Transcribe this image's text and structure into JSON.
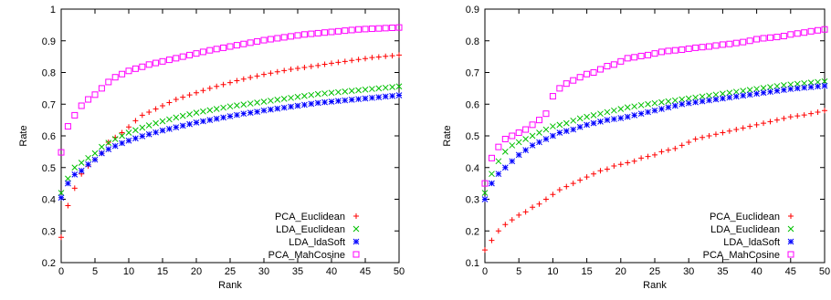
{
  "chart_data": [
    {
      "type": "scatter",
      "title": "",
      "xlabel": "Rank",
      "ylabel": "Rate",
      "xlim": [
        0,
        50
      ],
      "ylim": [
        0.2,
        1.0
      ],
      "xticks": [
        "0",
        "5",
        "10",
        "15",
        "20",
        "25",
        "30",
        "35",
        "40",
        "45",
        "50"
      ],
      "yticks": [
        "0.2",
        "0.3",
        "0.4",
        "0.5",
        "0.6",
        "0.7",
        "0.8",
        "0.9",
        "1"
      ],
      "grid": false,
      "legend_position": "bottom-right",
      "x": [
        0,
        1,
        2,
        3,
        4,
        5,
        6,
        7,
        8,
        9,
        10,
        11,
        12,
        13,
        14,
        15,
        16,
        17,
        18,
        19,
        20,
        21,
        22,
        23,
        24,
        25,
        26,
        27,
        28,
        29,
        30,
        31,
        32,
        33,
        34,
        35,
        36,
        37,
        38,
        39,
        40,
        41,
        42,
        43,
        44,
        45,
        46,
        47,
        48,
        49,
        50
      ],
      "series": [
        {
          "name": "PCA_Euclidean",
          "marker": "plus",
          "color": "#ff0000",
          "values": [
            0.28,
            0.38,
            0.435,
            0.48,
            0.505,
            0.525,
            0.545,
            0.58,
            0.595,
            0.61,
            0.628,
            0.648,
            0.665,
            0.675,
            0.685,
            0.695,
            0.705,
            0.715,
            0.722,
            0.729,
            0.736,
            0.743,
            0.75,
            0.756,
            0.762,
            0.768,
            0.774,
            0.779,
            0.784,
            0.789,
            0.794,
            0.798,
            0.802,
            0.806,
            0.81,
            0.813,
            0.816,
            0.819,
            0.822,
            0.826,
            0.829,
            0.832,
            0.835,
            0.838,
            0.841,
            0.844,
            0.847,
            0.849,
            0.851,
            0.853,
            0.855
          ]
        },
        {
          "name": "LDA_Euclidean",
          "marker": "cross",
          "color": "#00c000",
          "values": [
            0.42,
            0.465,
            0.5,
            0.515,
            0.53,
            0.545,
            0.565,
            0.578,
            0.59,
            0.6,
            0.61,
            0.618,
            0.626,
            0.633,
            0.64,
            0.646,
            0.652,
            0.658,
            0.663,
            0.668,
            0.673,
            0.677,
            0.681,
            0.685,
            0.689,
            0.693,
            0.696,
            0.699,
            0.702,
            0.705,
            0.708,
            0.711,
            0.714,
            0.717,
            0.72,
            0.723,
            0.726,
            0.729,
            0.732,
            0.734,
            0.736,
            0.738,
            0.74,
            0.742,
            0.744,
            0.746,
            0.748,
            0.75,
            0.752,
            0.754,
            0.756
          ]
        },
        {
          "name": "LDA_ldaSoft",
          "marker": "star",
          "color": "#0000ff",
          "values": [
            0.405,
            0.45,
            0.478,
            0.49,
            0.51,
            0.525,
            0.545,
            0.558,
            0.568,
            0.577,
            0.585,
            0.592,
            0.599,
            0.605,
            0.611,
            0.617,
            0.622,
            0.627,
            0.632,
            0.637,
            0.642,
            0.646,
            0.65,
            0.654,
            0.658,
            0.662,
            0.666,
            0.67,
            0.673,
            0.676,
            0.68,
            0.683,
            0.686,
            0.689,
            0.692,
            0.695,
            0.698,
            0.701,
            0.704,
            0.706,
            0.708,
            0.71,
            0.712,
            0.714,
            0.716,
            0.718,
            0.72,
            0.722,
            0.724,
            0.726,
            0.728
          ]
        },
        {
          "name": "PCA_MahCosine",
          "marker": "square",
          "color": "#ff00ff",
          "values": [
            0.548,
            0.63,
            0.665,
            0.695,
            0.715,
            0.73,
            0.75,
            0.77,
            0.785,
            0.795,
            0.805,
            0.812,
            0.818,
            0.825,
            0.83,
            0.835,
            0.84,
            0.845,
            0.85,
            0.855,
            0.86,
            0.865,
            0.87,
            0.874,
            0.878,
            0.882,
            0.886,
            0.89,
            0.894,
            0.898,
            0.902,
            0.905,
            0.908,
            0.911,
            0.914,
            0.917,
            0.92,
            0.922,
            0.924,
            0.926,
            0.928,
            0.93,
            0.932,
            0.934,
            0.936,
            0.937,
            0.938,
            0.939,
            0.94,
            0.941,
            0.942
          ]
        }
      ]
    },
    {
      "type": "scatter",
      "title": "",
      "xlabel": "Rank",
      "ylabel": "Rate",
      "xlim": [
        0,
        50
      ],
      "ylim": [
        0.1,
        0.9
      ],
      "xticks": [
        "0",
        "5",
        "10",
        "15",
        "20",
        "25",
        "30",
        "35",
        "40",
        "45",
        "50"
      ],
      "yticks": [
        "0.1",
        "0.2",
        "0.3",
        "0.4",
        "0.5",
        "0.6",
        "0.7",
        "0.8",
        "0.9"
      ],
      "grid": false,
      "legend_position": "bottom-right",
      "x": [
        0,
        1,
        2,
        3,
        4,
        5,
        6,
        7,
        8,
        9,
        10,
        11,
        12,
        13,
        14,
        15,
        16,
        17,
        18,
        19,
        20,
        21,
        22,
        23,
        24,
        25,
        26,
        27,
        28,
        29,
        30,
        31,
        32,
        33,
        34,
        35,
        36,
        37,
        38,
        39,
        40,
        41,
        42,
        43,
        44,
        45,
        46,
        47,
        48,
        49,
        50
      ],
      "series": [
        {
          "name": "PCA_Euclidean",
          "marker": "plus",
          "color": "#ff0000",
          "values": [
            0.14,
            0.17,
            0.2,
            0.22,
            0.235,
            0.25,
            0.26,
            0.275,
            0.285,
            0.3,
            0.315,
            0.33,
            0.34,
            0.35,
            0.36,
            0.37,
            0.38,
            0.39,
            0.395,
            0.405,
            0.41,
            0.415,
            0.42,
            0.43,
            0.435,
            0.44,
            0.45,
            0.455,
            0.46,
            0.47,
            0.48,
            0.49,
            0.495,
            0.5,
            0.505,
            0.51,
            0.515,
            0.52,
            0.525,
            0.53,
            0.535,
            0.54,
            0.545,
            0.55,
            0.555,
            0.56,
            0.563,
            0.566,
            0.57,
            0.575,
            0.58
          ]
        },
        {
          "name": "LDA_Euclidean",
          "marker": "cross",
          "color": "#00c000",
          "values": [
            0.32,
            0.38,
            0.42,
            0.45,
            0.47,
            0.48,
            0.49,
            0.5,
            0.51,
            0.52,
            0.53,
            0.535,
            0.54,
            0.548,
            0.555,
            0.56,
            0.565,
            0.57,
            0.575,
            0.58,
            0.585,
            0.59,
            0.593,
            0.597,
            0.6,
            0.603,
            0.606,
            0.609,
            0.612,
            0.615,
            0.618,
            0.621,
            0.624,
            0.627,
            0.63,
            0.633,
            0.636,
            0.639,
            0.642,
            0.645,
            0.648,
            0.651,
            0.654,
            0.657,
            0.66,
            0.662,
            0.664,
            0.666,
            0.668,
            0.67,
            0.672
          ]
        },
        {
          "name": "LDA_ldaSoft",
          "marker": "star",
          "color": "#0000ff",
          "values": [
            0.3,
            0.35,
            0.38,
            0.4,
            0.42,
            0.44,
            0.455,
            0.47,
            0.48,
            0.49,
            0.5,
            0.51,
            0.515,
            0.52,
            0.528,
            0.535,
            0.54,
            0.545,
            0.55,
            0.553,
            0.556,
            0.56,
            0.565,
            0.57,
            0.575,
            0.58,
            0.585,
            0.59,
            0.595,
            0.6,
            0.603,
            0.606,
            0.609,
            0.612,
            0.615,
            0.618,
            0.621,
            0.624,
            0.627,
            0.63,
            0.633,
            0.636,
            0.639,
            0.642,
            0.645,
            0.648,
            0.65,
            0.652,
            0.654,
            0.656,
            0.658
          ]
        },
        {
          "name": "PCA_MahCosine",
          "marker": "square",
          "color": "#ff00ff",
          "values": [
            0.35,
            0.43,
            0.465,
            0.49,
            0.5,
            0.51,
            0.52,
            0.535,
            0.55,
            0.57,
            0.625,
            0.65,
            0.665,
            0.675,
            0.685,
            0.695,
            0.7,
            0.71,
            0.72,
            0.725,
            0.735,
            0.745,
            0.748,
            0.752,
            0.755,
            0.76,
            0.765,
            0.768,
            0.77,
            0.772,
            0.775,
            0.778,
            0.78,
            0.782,
            0.785,
            0.788,
            0.79,
            0.793,
            0.796,
            0.8,
            0.805,
            0.808,
            0.81,
            0.812,
            0.815,
            0.82,
            0.823,
            0.826,
            0.83,
            0.833,
            0.836
          ]
        }
      ]
    }
  ]
}
